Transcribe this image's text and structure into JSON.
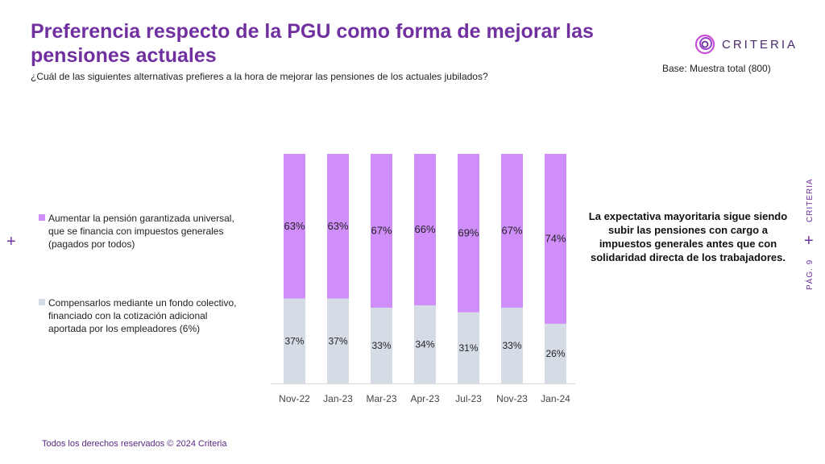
{
  "header": {
    "title": "Preferencia respecto de la PGU como forma de mejorar las pensiones actuales",
    "question": "¿Cuál de las siguientes alternativas prefieres a la hora de mejorar las pensiones de los actuales jubilados?",
    "base": "Base: Muestra total (800)"
  },
  "brand": {
    "logo_text": "CRITERIA",
    "logo_icon": "swirl-logo-icon",
    "side_label": "CRITERIA",
    "page_label": "PÁG. 9"
  },
  "plus_glyph": "+",
  "insight": "La expectativa mayoritaria sigue siendo subir las pensiones con cargo a impuestos generales antes que con solidaridad directa de los trabajadores.",
  "footer": "Todos los derechos reservados © 2024 Criteria",
  "colors": {
    "purple": "#cf8ef9",
    "gray": "#d6dce5",
    "brand": "#7030a0"
  },
  "chart_data": {
    "type": "bar",
    "stacked": true,
    "percent": true,
    "categories": [
      "Nov-22",
      "Jan-23",
      "Mar-23",
      "Apr-23",
      "Jul-23",
      "Nov-23",
      "Jan-24"
    ],
    "series": [
      {
        "name": "Compensarlos mediante un fondo colectivo, financiado con la cotización adicional aportada por los empleadores (6%)",
        "values": [
          37,
          37,
          33,
          34,
          31,
          33,
          26
        ],
        "labels": [
          "37%",
          "37%",
          "33%",
          "34%",
          "31%",
          "33%",
          "26%"
        ],
        "color": "#d6dce5"
      },
      {
        "name": "Aumentar la pensión garantizada universal, que se financia con impuestos generales (pagados por todos)",
        "values": [
          63,
          63,
          67,
          66,
          69,
          67,
          74
        ],
        "labels": [
          "63%",
          "63%",
          "67%",
          "66%",
          "69%",
          "67%",
          "74%"
        ],
        "color": "#cf8ef9"
      }
    ],
    "ylim": [
      0,
      100
    ],
    "grid": false,
    "legend_position": "left"
  }
}
